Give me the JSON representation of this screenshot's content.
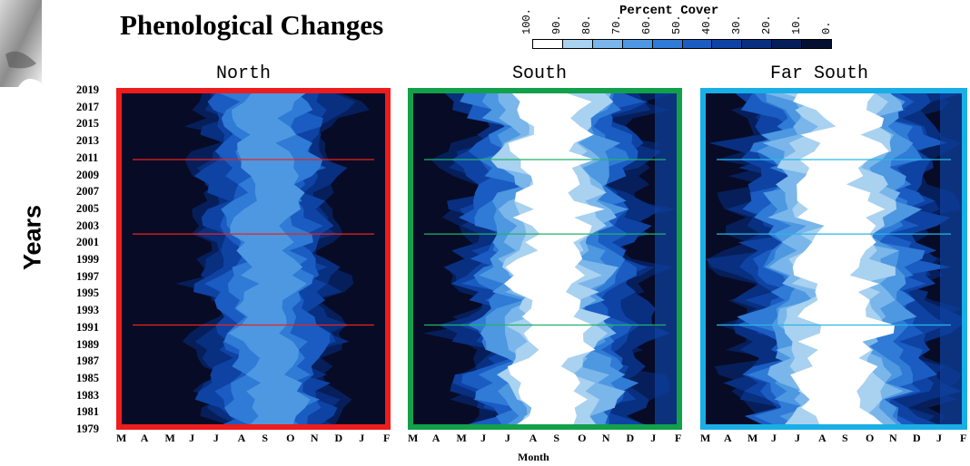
{
  "title": "Phenological Changes",
  "legend": {
    "title": "Percent Cover",
    "ticks": [
      "100.",
      "90.",
      "80.",
      "70.",
      "60.",
      "50.",
      "40.",
      "30.",
      "20.",
      "10.",
      "0."
    ],
    "colors": [
      "#ffffff",
      "#a9d1f0",
      "#7ab6ea",
      "#4d98e0",
      "#2f7bd6",
      "#1a5cc2",
      "#0e43a4",
      "#082f80",
      "#061f5a",
      "#050f2f"
    ]
  },
  "y_axis_label": "Years",
  "x_axis_label": "Month",
  "year_ticks": [
    "2019",
    "2017",
    "2015",
    "2013",
    "2011",
    "2009",
    "2007",
    "2005",
    "2003",
    "2001",
    "1999",
    "1997",
    "1995",
    "1993",
    "1991",
    "1989",
    "1987",
    "1985",
    "1983",
    "1981",
    "1979"
  ],
  "panels": [
    {
      "title": "North",
      "border_color": "#ee1c1c",
      "line_color": "#e8241c",
      "months": [
        "M",
        "A",
        "M",
        "J",
        "J",
        "A",
        "S",
        "O",
        "N",
        "D",
        "J",
        "F"
      ]
    },
    {
      "title": "South",
      "border_color": "#12a04a",
      "line_color": "#22b26a",
      "months": [
        "M",
        "A",
        "M",
        "J",
        "J",
        "A",
        "S",
        "O",
        "N",
        "D",
        "J",
        "F"
      ]
    },
    {
      "title": "Far South",
      "border_color": "#1aaee6",
      "line_color": "#29b6e6",
      "months": [
        "M",
        "A",
        "M",
        "J",
        "J",
        "A",
        "S",
        "O",
        "N",
        "D",
        "J",
        "F"
      ]
    }
  ],
  "chart_data": {
    "type": "heatmap",
    "title": "Phenological Changes",
    "xlabel": "Month",
    "ylabel": "Years",
    "x_categories": [
      "M",
      "A",
      "M",
      "J",
      "J",
      "A",
      "S",
      "O",
      "N",
      "D",
      "J",
      "F"
    ],
    "y_range": [
      1979,
      2019
    ],
    "colorbar": {
      "label": "Percent Cover",
      "range": [
        100,
        0
      ],
      "step": 10
    },
    "reference_years": [
      1991,
      2002,
      2011
    ],
    "panels": [
      {
        "name": "North",
        "season_start_month_index": 3.5,
        "season_end_month_index": 8.8,
        "peak_cover": 70
      },
      {
        "name": "South",
        "season_start_month_index": 2.4,
        "season_end_month_index": 9.2,
        "peak_cover": 100
      },
      {
        "name": "Far South",
        "season_start_month_index": 1.8,
        "season_end_month_index": 9.6,
        "peak_cover": 100
      }
    ]
  }
}
